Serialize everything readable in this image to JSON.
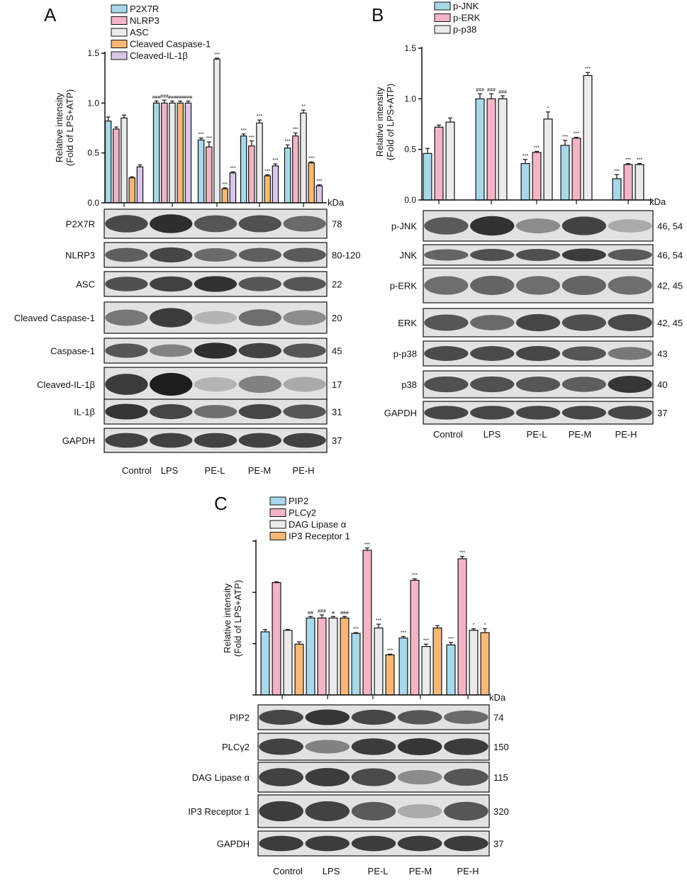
{
  "panels": [
    "A",
    "B",
    "C"
  ],
  "kda": "kDa",
  "colors": {
    "blue": "#a8d8ea",
    "pink": "#f3b5c6",
    "grey": "#ebebeb",
    "orange": "#f7b877",
    "lilac": "#dcc6ea"
  },
  "chart_data": [
    {
      "panel": "A",
      "type": "bar",
      "ylabel_lines": [
        "Relative intensity",
        "(Fold of LPS+ATP)"
      ],
      "ylim": [
        0,
        1.5
      ],
      "yticks": [
        "0.0",
        "0.5",
        "1.0",
        "1.5"
      ],
      "categories": [
        "Control",
        "LPS",
        "PE-L",
        "PE-M",
        "PE-H"
      ],
      "series": [
        {
          "name": "P2X7R",
          "color": "#a8d8ea",
          "values": [
            0.82,
            1.0,
            0.63,
            0.67,
            0.55
          ],
          "errors": [
            0.04,
            0.02,
            0.02,
            0.02,
            0.03
          ],
          "marks": [
            "",
            "###",
            "***",
            "***",
            "***"
          ]
        },
        {
          "name": "NLRP3",
          "color": "#f3b5c6",
          "values": [
            0.74,
            1.0,
            0.56,
            0.57,
            0.67
          ],
          "errors": [
            0.02,
            0.03,
            0.05,
            0.05,
            0.03
          ],
          "marks": [
            "",
            "###",
            "***",
            "***",
            "***"
          ]
        },
        {
          "name": "ASC",
          "color": "#ebebeb",
          "values": [
            0.85,
            1.0,
            1.44,
            0.8,
            0.9
          ],
          "errors": [
            0.03,
            0.02,
            0.01,
            0.03,
            0.03
          ],
          "marks": [
            "",
            "###",
            "***",
            "***",
            "**"
          ]
        },
        {
          "name": "Cleaved Caspase-1",
          "color": "#f7b877",
          "values": [
            0.25,
            1.0,
            0.14,
            0.27,
            0.4
          ],
          "errors": [
            0.01,
            0.02,
            0.01,
            0.01,
            0.01
          ],
          "marks": [
            "",
            "###",
            "***",
            "***",
            "***"
          ]
        },
        {
          "name": "Cleaved-IL-1β",
          "color": "#dcc6ea",
          "values": [
            0.36,
            1.0,
            0.3,
            0.37,
            0.17
          ],
          "errors": [
            0.02,
            0.02,
            0.01,
            0.02,
            0.01
          ],
          "marks": [
            "",
            "###",
            "***",
            "***",
            "***"
          ]
        }
      ]
    },
    {
      "panel": "B",
      "type": "bar",
      "ylabel_lines": [
        "Relative intensity",
        "(Fold of LPS+ATP)"
      ],
      "ylim": [
        0,
        1.5
      ],
      "yticks": [
        "0.0",
        "0.5",
        "1.0",
        "1.5"
      ],
      "categories": [
        "Control",
        "LPS",
        "PE-L",
        "PE-M",
        "PE-H"
      ],
      "series": [
        {
          "name": "p-JNK",
          "color": "#a8d8ea",
          "values": [
            0.46,
            1.0,
            0.36,
            0.54,
            0.21
          ],
          "errors": [
            0.05,
            0.05,
            0.04,
            0.05,
            0.04
          ],
          "marks": [
            "",
            "###",
            "***",
            "***",
            "***"
          ]
        },
        {
          "name": "p-ERK",
          "color": "#f3b5c6",
          "values": [
            0.72,
            1.0,
            0.47,
            0.61,
            0.35
          ],
          "errors": [
            0.02,
            0.05,
            0.01,
            0.01,
            0.01
          ],
          "marks": [
            "",
            "###",
            "***",
            "***",
            "***"
          ]
        },
        {
          "name": "p-p38",
          "color": "#ebebeb",
          "values": [
            0.77,
            1.0,
            0.8,
            1.23,
            0.35
          ],
          "errors": [
            0.04,
            0.03,
            0.07,
            0.03,
            0.01
          ],
          "marks": [
            "",
            "###",
            "*",
            "***",
            "***"
          ]
        }
      ]
    },
    {
      "panel": "C",
      "type": "bar",
      "ylabel_lines": [
        "Relative intensity",
        "(Fold of LPS+ATP)"
      ],
      "ylim": [
        0,
        2.0
      ],
      "yticks": [
        "",
        "",
        "",
        ""
      ],
      "categories": [
        "Control",
        "LPS",
        "PE-L",
        "PE-M",
        "PE-H"
      ],
      "series": [
        {
          "name": "PIP2",
          "color": "#a8d8ea",
          "values": [
            0.82,
            1.0,
            0.8,
            0.74,
            0.65
          ],
          "errors": [
            0.03,
            0.02,
            0.01,
            0.02,
            0.03
          ],
          "marks": [
            "",
            "##",
            "***",
            "***",
            "***"
          ]
        },
        {
          "name": "PLCγ2",
          "color": "#f3b5c6",
          "values": [
            1.46,
            1.0,
            1.88,
            1.49,
            1.77
          ],
          "errors": [
            0.01,
            0.04,
            0.03,
            0.02,
            0.03
          ],
          "marks": [
            "",
            "###",
            "***",
            "***",
            "***"
          ]
        },
        {
          "name": "DAG Lipase α",
          "color": "#ebebeb",
          "values": [
            0.84,
            1.0,
            0.87,
            0.63,
            0.84
          ],
          "errors": [
            0.01,
            0.02,
            0.05,
            0.03,
            0.02
          ],
          "marks": [
            "",
            "#",
            "***",
            "***",
            "*"
          ]
        },
        {
          "name": "IP3 Receptor 1",
          "color": "#f7b877",
          "values": [
            0.66,
            1.0,
            0.52,
            0.87,
            0.81
          ],
          "errors": [
            0.03,
            0.02,
            0.01,
            0.03,
            0.05
          ],
          "marks": [
            "",
            "###",
            "***",
            "",
            "*"
          ]
        }
      ]
    }
  ],
  "blots": {
    "A": {
      "labels": [
        "P2X7R",
        "NLRP3",
        "ASC",
        "Cleaved Caspase-1",
        "Caspase-1",
        "Cleaved-IL-1β",
        "IL-1β",
        "GAPDH"
      ],
      "kda": [
        "78",
        "80-120",
        "22",
        "20",
        "45",
        "17",
        "31",
        "37"
      ],
      "intensity": [
        [
          0.78,
          0.92,
          0.72,
          0.75,
          0.62
        ],
        [
          0.68,
          0.8,
          0.62,
          0.68,
          0.7
        ],
        [
          0.75,
          0.82,
          0.9,
          0.72,
          0.72
        ],
        [
          0.55,
          0.85,
          0.25,
          0.6,
          0.45
        ],
        [
          0.72,
          0.5,
          0.92,
          0.82,
          0.72
        ],
        [
          0.85,
          1.0,
          0.25,
          0.5,
          0.3
        ],
        [
          0.88,
          0.8,
          0.6,
          0.8,
          0.72
        ],
        [
          0.82,
          0.82,
          0.82,
          0.82,
          0.82
        ]
      ]
    },
    "B": {
      "labels": [
        "p-JNK",
        "JNK",
        "p-ERK",
        "ERK",
        "p-p38",
        "p38",
        "GAPDH"
      ],
      "kda": [
        "46, 54",
        "46, 54",
        "42, 45",
        "42, 45",
        "43",
        "40",
        "37"
      ],
      "intensity": [
        [
          0.7,
          0.9,
          0.45,
          0.82,
          0.3
        ],
        [
          0.65,
          0.75,
          0.75,
          0.85,
          0.7
        ],
        [
          0.6,
          0.65,
          0.6,
          0.65,
          0.6
        ],
        [
          0.72,
          0.62,
          0.8,
          0.75,
          0.78
        ],
        [
          0.78,
          0.78,
          0.8,
          0.72,
          0.55
        ],
        [
          0.75,
          0.75,
          0.72,
          0.68,
          0.88
        ],
        [
          0.8,
          0.8,
          0.8,
          0.8,
          0.8
        ]
      ]
    },
    "C": {
      "labels": [
        "PIP2",
        "PLCγ2",
        "DAG Lipase α",
        "IP3 Receptor 1",
        "GAPDH"
      ],
      "kda": [
        "74",
        "150",
        "115",
        "320",
        "37"
      ],
      "intensity": [
        [
          0.8,
          0.88,
          0.8,
          0.72,
          0.62
        ],
        [
          0.82,
          0.5,
          0.85,
          0.88,
          0.85
        ],
        [
          0.82,
          0.85,
          0.78,
          0.45,
          0.72
        ],
        [
          0.85,
          0.82,
          0.7,
          0.3,
          0.72
        ],
        [
          0.85,
          0.85,
          0.85,
          0.85,
          0.85
        ]
      ]
    }
  }
}
